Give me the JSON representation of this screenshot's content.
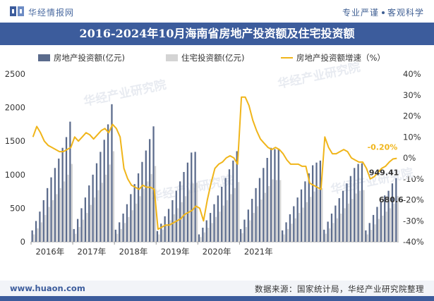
{
  "header": {
    "brand": "华经情报网",
    "slogan_a": "专业严谨",
    "slogan_b": "客观科学",
    "logo_icon": "huajing-logo-icon"
  },
  "title": "2016-2024年10月海南省房地产投资额及住宅投资额",
  "legend": {
    "s1": "房地产投资额(亿元)",
    "s2": "住宅投资额(亿元)",
    "s3": "房地产投资额增速（%）"
  },
  "watermark": "华经产业研究院",
  "footer": {
    "url": "www.huaon.com",
    "source": "数据来源：国家统计局，华经产业研究院整理"
  },
  "colors": {
    "bar_total": "#5b6b8c",
    "bar_resi": "#d4d4d4",
    "line": "#f0b51a",
    "accent": "#3c5c9c",
    "label_last_growth": "#f0b51a"
  },
  "chart_data": {
    "type": "bar",
    "title": "2016-2024年10月海南省房地产投资额及住宅投资额",
    "xlabel": "",
    "ylabel_left": "亿元",
    "ylabel_right": "%",
    "ylim_left": [
      0,
      2500
    ],
    "ylim_right": [
      -40,
      40
    ],
    "yticks_left": [
      0,
      500,
      1000,
      1500,
      2000,
      2500
    ],
    "yticks_right": [
      -40,
      -30,
      -20,
      -10,
      0,
      10,
      20,
      30,
      40
    ],
    "ytick_suffix_right": "%",
    "year_labels": [
      "2016年",
      "2017年",
      "2018年",
      "2019年",
      "2020年",
      "2021年"
    ],
    "months_per_year": [
      11,
      11,
      11,
      11,
      11,
      11,
      11,
      11,
      9
    ],
    "series": [
      {
        "name": "房地产投资额(亿元)",
        "kind": "bar",
        "axis": "left",
        "values": [
          170,
          310,
          450,
          620,
          800,
          960,
          1100,
          1240,
          1400,
          1560,
          1790,
          190,
          340,
          500,
          660,
          840,
          1000,
          1170,
          1340,
          1520,
          1750,
          2050,
          180,
          290,
          420,
          560,
          710,
          860,
          1020,
          1190,
          1360,
          1530,
          1720,
          160,
          270,
          380,
          490,
          620,
          760,
          900,
          1040,
          1180,
          1330,
          1340,
          110,
          210,
          320,
          430,
          560,
          690,
          820,
          950,
          1080,
          1210,
          1350,
          190,
          330,
          480,
          640,
          800,
          950,
          1100,
          1250,
          1400,
          1380,
          1380,
          170,
          290,
          410,
          530,
          660,
          780,
          900,
          1020,
          1140,
          1180,
          1210,
          180,
          300,
          420,
          540,
          650,
          760,
          870,
          980,
          1100,
          1160,
          1170,
          170,
          280,
          400,
          520,
          600,
          690,
          760,
          870,
          949.41
        ]
      },
      {
        "name": "住宅投资额(亿元)",
        "kind": "bar",
        "axis": "left",
        "values": [
          110,
          200,
          290,
          400,
          520,
          620,
          710,
          800,
          900,
          1000,
          1160,
          120,
          220,
          330,
          430,
          550,
          660,
          770,
          880,
          1000,
          1150,
          1350,
          120,
          190,
          280,
          370,
          470,
          570,
          680,
          790,
          900,
          1010,
          1130,
          110,
          180,
          250,
          320,
          410,
          500,
          590,
          680,
          770,
          870,
          880,
          70,
          140,
          210,
          280,
          370,
          450,
          540,
          620,
          710,
          800,
          890,
          130,
          220,
          320,
          430,
          530,
          630,
          730,
          830,
          930,
          920,
          920,
          110,
          190,
          270,
          350,
          430,
          510,
          590,
          670,
          750,
          780,
          800,
          120,
          200,
          280,
          350,
          420,
          500,
          570,
          640,
          720,
          760,
          770,
          110,
          180,
          260,
          340,
          390,
          450,
          500,
          570,
          680.6
        ]
      },
      {
        "name": "房地产投资额增速（%）",
        "kind": "line",
        "axis": "right",
        "values": [
          10,
          15,
          12,
          8,
          6,
          5,
          4,
          3,
          3,
          4,
          5,
          10,
          8,
          10,
          12,
          11,
          9,
          11,
          13,
          14,
          12,
          16,
          14,
          10,
          -5,
          -10,
          -13,
          -14,
          -15,
          -13,
          -14,
          -14,
          -15,
          -34,
          -33,
          -32,
          -32,
          -31,
          -30,
          -29,
          -27,
          -26,
          -25,
          -23,
          -24,
          -30,
          -20,
          -12,
          -5,
          -3,
          -2,
          0,
          1,
          0,
          -3,
          29,
          29,
          25,
          18,
          13,
          9,
          7,
          5,
          4,
          5,
          4,
          2,
          -1,
          -3,
          -3,
          -3,
          -4,
          -4,
          -12,
          -13,
          -14,
          -15,
          10,
          5,
          2,
          2,
          3,
          4,
          3,
          0,
          -1,
          -2,
          -2,
          -5,
          -10,
          -9,
          -7,
          -5,
          -4,
          -2,
          -0.5,
          -0.2
        ]
      }
    ],
    "annotations": [
      {
        "series": 2,
        "index": 89,
        "text": "-0.20%"
      },
      {
        "series": 0,
        "index": 89,
        "text": "949.41"
      },
      {
        "series": 1,
        "index": 89,
        "text": "680.6"
      }
    ]
  }
}
